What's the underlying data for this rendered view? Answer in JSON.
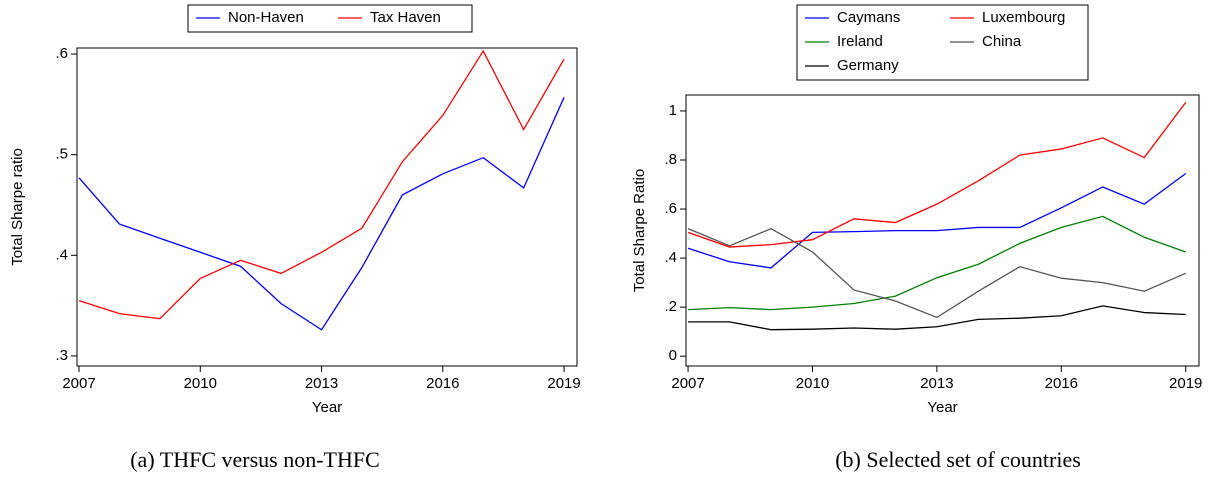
{
  "chart_data": [
    {
      "type": "line",
      "caption": "(a) THFC versus non-THFC",
      "xlabel": "Year",
      "ylabel": "Total Sharpe ratio",
      "x": [
        2007,
        2008,
        2009,
        2010,
        2011,
        2012,
        2013,
        2014,
        2015,
        2016,
        2017,
        2018,
        2019
      ],
      "xlim": [
        2006.95,
        2019.32
      ],
      "xticks": [
        2007,
        2010,
        2013,
        2016,
        2019
      ],
      "ylim": [
        0.29,
        0.606
      ],
      "yticks": [
        {
          "value": 0.3,
          "label": ".3"
        },
        {
          "value": 0.4,
          "label": ".4"
        },
        {
          "value": 0.5,
          "label": ".5"
        },
        {
          "value": 0.6,
          "label": ".6"
        }
      ],
      "series": [
        {
          "name": "Non-Haven",
          "color": "#0000ff",
          "values": [
            0.477,
            0.431,
            0.417,
            0.403,
            0.389,
            0.352,
            0.326,
            0.388,
            0.46,
            0.481,
            0.497,
            0.467,
            0.557
          ]
        },
        {
          "name": "Tax Haven",
          "color": "#ff0000",
          "values": [
            0.355,
            0.342,
            0.337,
            0.377,
            0.395,
            0.382,
            0.403,
            0.427,
            0.493,
            0.539,
            0.603,
            0.525,
            0.595
          ]
        }
      ]
    },
    {
      "type": "line",
      "caption": "(b) Selected set of countries",
      "xlabel": "Year",
      "ylabel": "Total Sharpe Ratio",
      "x": [
        2007,
        2008,
        2009,
        2010,
        2011,
        2012,
        2013,
        2014,
        2015,
        2016,
        2017,
        2018,
        2019
      ],
      "xlim": [
        2006.95,
        2019.32
      ],
      "xticks": [
        2007,
        2010,
        2013,
        2016,
        2019
      ],
      "ylim": [
        -0.04,
        1.065
      ],
      "yticks": [
        0,
        {
          "value": 0.2,
          "label": ".2"
        },
        {
          "value": 0.4,
          "label": ".4"
        },
        {
          "value": 0.6,
          "label": ".6"
        },
        {
          "value": 0.8,
          "label": ".8"
        },
        1
      ],
      "series": [
        {
          "name": "Caymans",
          "color": "#0000ff",
          "values": [
            0.44,
            0.385,
            0.36,
            0.505,
            0.508,
            0.512,
            0.512,
            0.525,
            0.525,
            0.605,
            0.69,
            0.62,
            0.745
          ]
        },
        {
          "name": "Luxembourg",
          "color": "#ff0000",
          "values": [
            0.505,
            0.445,
            0.455,
            0.475,
            0.56,
            0.545,
            0.62,
            0.715,
            0.82,
            0.845,
            0.89,
            0.81,
            1.035
          ]
        },
        {
          "name": "Ireland",
          "color": "#008000",
          "values": [
            0.19,
            0.198,
            0.19,
            0.2,
            0.215,
            0.245,
            0.32,
            0.375,
            0.46,
            0.525,
            0.57,
            0.485,
            0.425
          ]
        },
        {
          "name": "China",
          "color": "#555555",
          "values": [
            0.52,
            0.45,
            0.52,
            0.425,
            0.27,
            0.225,
            0.158,
            0.265,
            0.365,
            0.318,
            0.3,
            0.265,
            0.338
          ]
        },
        {
          "name": "Germany",
          "color": "#000000",
          "values": [
            0.14,
            0.14,
            0.108,
            0.11,
            0.115,
            0.11,
            0.12,
            0.15,
            0.155,
            0.165,
            0.205,
            0.178,
            0.17
          ]
        }
      ]
    }
  ]
}
